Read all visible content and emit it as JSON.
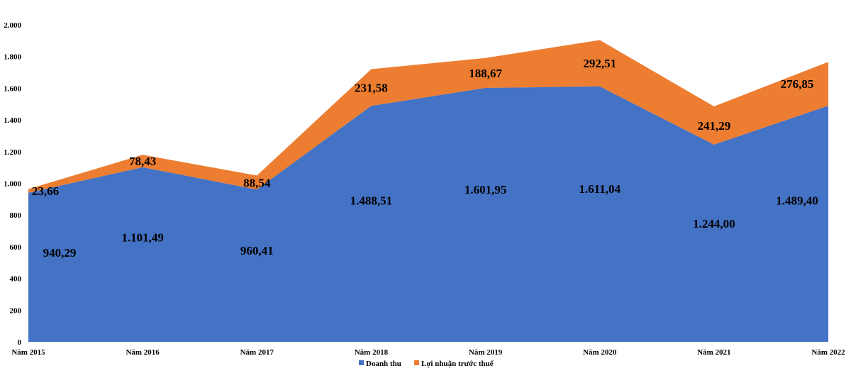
{
  "chart_data": {
    "type": "area",
    "stacked": true,
    "categories": [
      "Năm 2015",
      "Năm 2016",
      "Năm 2017",
      "Năm 2018",
      "Năm 2019",
      "Năm 2020",
      "Năm 2021",
      "Năm 2022"
    ],
    "series": [
      {
        "name": "Doanh thu",
        "color": "#4472C4",
        "values": [
          940.29,
          1101.49,
          960.41,
          1488.51,
          1601.95,
          1611.04,
          1244.0,
          1489.4
        ],
        "labels": [
          "940,29",
          "1.101,49",
          "960,41",
          "1.488,51",
          "1.601,95",
          "1.611,04",
          "1.244,00",
          "1.489,40"
        ]
      },
      {
        "name": "Lợi nhuận trước thuế",
        "color": "#ED7D31",
        "values": [
          23.66,
          78.43,
          88.54,
          231.58,
          188.67,
          292.51,
          241.29,
          276.85
        ],
        "labels": [
          "23,66",
          "78,43",
          "88,54",
          "231,58",
          "188,67",
          "292,51",
          "241,29",
          "276,85"
        ]
      }
    ],
    "ylim": [
      0,
      2000
    ],
    "yticks": [
      0,
      200,
      400,
      600,
      800,
      1000,
      1200,
      1400,
      1600,
      1800,
      2000
    ],
    "ytick_labels": [
      "0",
      "200",
      "400",
      "600",
      "800",
      "1.000",
      "1.200",
      "1.400",
      "1.600",
      "1.800",
      "2.000"
    ],
    "title": "",
    "xlabel": "",
    "ylabel": "",
    "grid": false,
    "legend": "bottom"
  }
}
